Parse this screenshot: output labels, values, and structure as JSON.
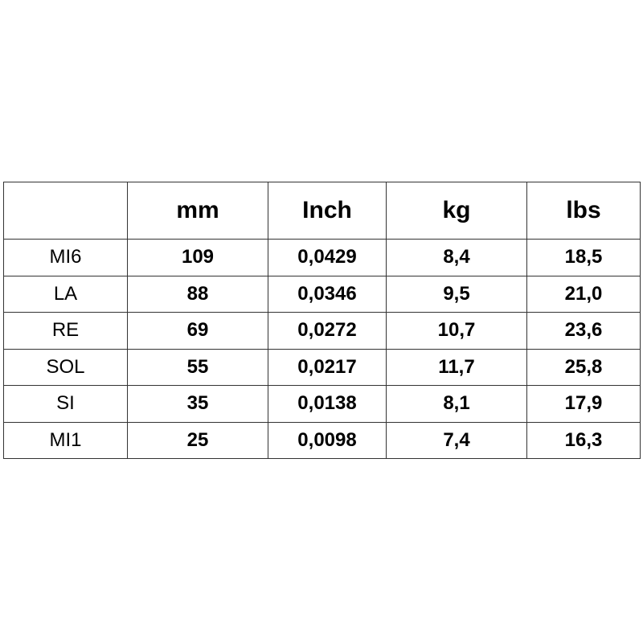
{
  "table": {
    "headers": [
      "mm",
      "Inch",
      "kg",
      "lbs"
    ],
    "rows": [
      [
        "MI6",
        "109",
        "0,0429",
        "8,4",
        "18,5"
      ],
      [
        "LA",
        "88",
        "0,0346",
        "9,5",
        "21,0"
      ],
      [
        "RE",
        "69",
        "0,0272",
        "10,7",
        "23,6"
      ],
      [
        "SOL",
        "55",
        "0,0217",
        "11,7",
        "25,8"
      ],
      [
        "SI",
        "35",
        "0,0138",
        "8,1",
        "17,9"
      ],
      [
        "MI1",
        "25",
        "0,0098",
        "7,4",
        "16,3"
      ]
    ]
  }
}
